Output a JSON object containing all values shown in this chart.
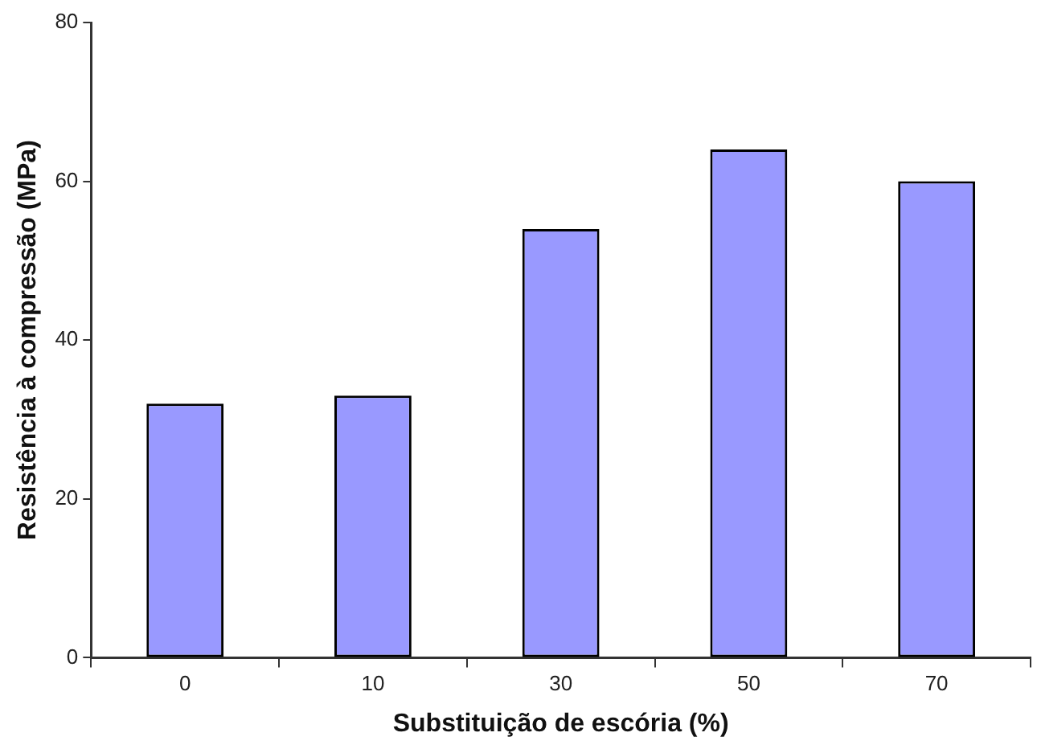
{
  "chart_data": {
    "type": "bar",
    "xlabel": "Substituição de escória (%)",
    "ylabel": "Resistência à compressão (MPa)",
    "categories": [
      "0",
      "10",
      "30",
      "50",
      "70"
    ],
    "values": [
      32,
      33,
      54,
      64,
      60
    ],
    "color": "#9999ff",
    "ylim": [
      0,
      80
    ],
    "yticks": [
      0,
      20,
      40,
      60,
      80
    ],
    "grid": false
  }
}
